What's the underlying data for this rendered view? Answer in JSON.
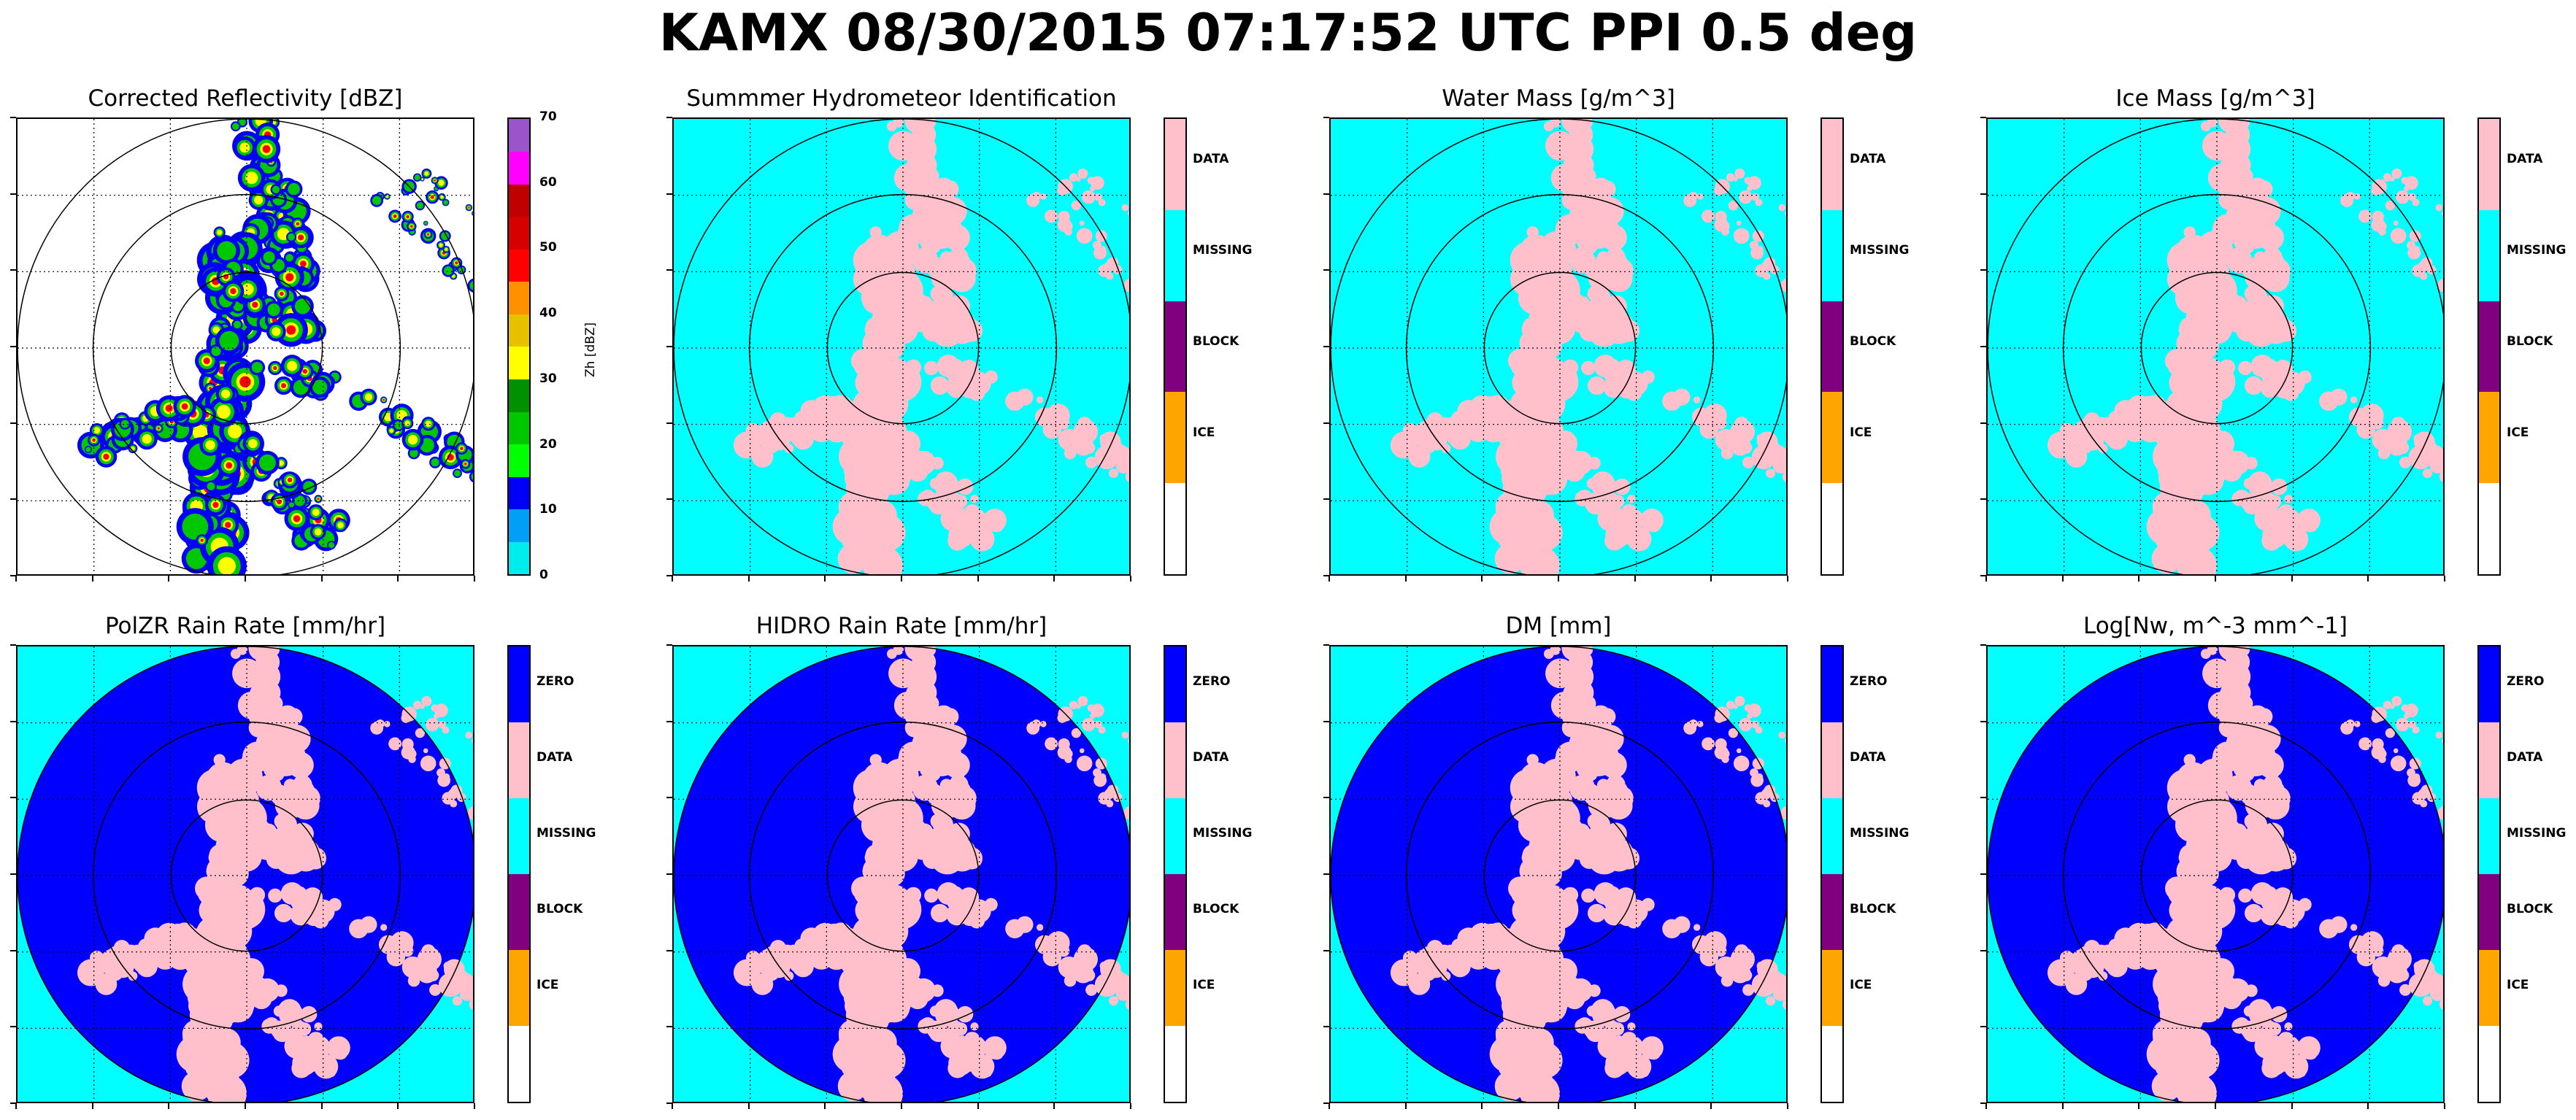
{
  "figure": {
    "suptitle": "KAMX 08/30/2015 07:17:52 UTC PPI 0.5 deg",
    "colors": {
      "cyan": "#00ffff",
      "pink": "#ffc0cb",
      "blue": "#0000ff",
      "purple": "#800080",
      "orange": "#ffa500",
      "white": "#ffffff"
    }
  },
  "chart_data": [
    {
      "type": "heatmap",
      "title": "Corrected Reflectivity [dBZ]",
      "colorbar": {
        "label": "Zh [dBZ]",
        "range": [
          0,
          70
        ],
        "ticks": [
          "0",
          "10",
          "20",
          "30",
          "40",
          "50",
          "60",
          "70"
        ],
        "segments": [
          {
            "from": 0,
            "to": 5,
            "color": "#00ecec"
          },
          {
            "from": 5,
            "to": 10,
            "color": "#01a0f6"
          },
          {
            "from": 10,
            "to": 15,
            "color": "#0000f6"
          },
          {
            "from": 15,
            "to": 20,
            "color": "#00ff00"
          },
          {
            "from": 20,
            "to": 25,
            "color": "#00c800"
          },
          {
            "from": 25,
            "to": 30,
            "color": "#009000"
          },
          {
            "from": 30,
            "to": 35,
            "color": "#ffff00"
          },
          {
            "from": 35,
            "to": 40,
            "color": "#e7c000"
          },
          {
            "from": 40,
            "to": 45,
            "color": "#ff9000"
          },
          {
            "from": 45,
            "to": 50,
            "color": "#ff0000"
          },
          {
            "from": 50,
            "to": 55,
            "color": "#d60000"
          },
          {
            "from": 55,
            "to": 60,
            "color": "#c00000"
          },
          {
            "from": 60,
            "to": 65,
            "color": "#ff00ff"
          },
          {
            "from": 65,
            "to": 70,
            "color": "#9955c9"
          }
        ]
      },
      "background": "#ffffff",
      "grid": true,
      "range_rings": 3
    },
    {
      "type": "heatmap",
      "title": "Summmer Hydrometeor Identification",
      "colorbar": {
        "categories": [
          "DATA",
          "MISSING",
          "BLOCK",
          "ICE",
          ""
        ],
        "colors": [
          "#ffc0cb",
          "#00ffff",
          "#800080",
          "#ffa500",
          "#ffffff"
        ]
      },
      "background": "#00ffff",
      "echo_color": "#ffc0cb",
      "grid": true,
      "range_rings": 3
    },
    {
      "type": "heatmap",
      "title": "Water Mass [g/m^3]",
      "colorbar": {
        "categories": [
          "DATA",
          "MISSING",
          "BLOCK",
          "ICE",
          ""
        ],
        "colors": [
          "#ffc0cb",
          "#00ffff",
          "#800080",
          "#ffa500",
          "#ffffff"
        ]
      },
      "background": "#00ffff",
      "echo_color": "#ffc0cb",
      "grid": true,
      "range_rings": 3
    },
    {
      "type": "heatmap",
      "title": "Ice Mass [g/m^3]",
      "colorbar": {
        "categories": [
          "DATA",
          "MISSING",
          "BLOCK",
          "ICE",
          ""
        ],
        "colors": [
          "#ffc0cb",
          "#00ffff",
          "#800080",
          "#ffa500",
          "#ffffff"
        ]
      },
      "background": "#00ffff",
      "echo_color": "#ffc0cb",
      "grid": true,
      "range_rings": 3
    },
    {
      "type": "heatmap",
      "title": "PolZR Rain Rate [mm/hr]",
      "colorbar": {
        "categories": [
          "ZERO",
          "DATA",
          "MISSING",
          "BLOCK",
          "ICE",
          ""
        ],
        "colors": [
          "#0000ff",
          "#ffc0cb",
          "#00ffff",
          "#800080",
          "#ffa500",
          "#ffffff"
        ]
      },
      "background": "#00ffff",
      "disk_color": "#0000ff",
      "echo_color": "#ffc0cb",
      "grid": true,
      "range_rings": 3
    },
    {
      "type": "heatmap",
      "title": "HIDRO Rain Rate [mm/hr]",
      "colorbar": {
        "categories": [
          "ZERO",
          "DATA",
          "MISSING",
          "BLOCK",
          "ICE",
          ""
        ],
        "colors": [
          "#0000ff",
          "#ffc0cb",
          "#00ffff",
          "#800080",
          "#ffa500",
          "#ffffff"
        ]
      },
      "background": "#00ffff",
      "disk_color": "#0000ff",
      "echo_color": "#ffc0cb",
      "grid": true,
      "range_rings": 3
    },
    {
      "type": "heatmap",
      "title": "DM [mm]",
      "colorbar": {
        "categories": [
          "ZERO",
          "DATA",
          "MISSING",
          "BLOCK",
          "ICE",
          ""
        ],
        "colors": [
          "#0000ff",
          "#ffc0cb",
          "#00ffff",
          "#800080",
          "#ffa500",
          "#ffffff"
        ]
      },
      "background": "#00ffff",
      "disk_color": "#0000ff",
      "echo_color": "#ffc0cb",
      "grid": true,
      "range_rings": 3
    },
    {
      "type": "heatmap",
      "title": "Log[Nw, m^-3 mm^-1]",
      "colorbar": {
        "categories": [
          "ZERO",
          "DATA",
          "MISSING",
          "BLOCK",
          "ICE",
          ""
        ],
        "colors": [
          "#0000ff",
          "#ffc0cb",
          "#00ffff",
          "#800080",
          "#ffa500",
          "#ffffff"
        ]
      },
      "background": "#00ffff",
      "disk_color": "#0000ff",
      "echo_color": "#ffc0cb",
      "grid": true,
      "range_rings": 3
    }
  ]
}
